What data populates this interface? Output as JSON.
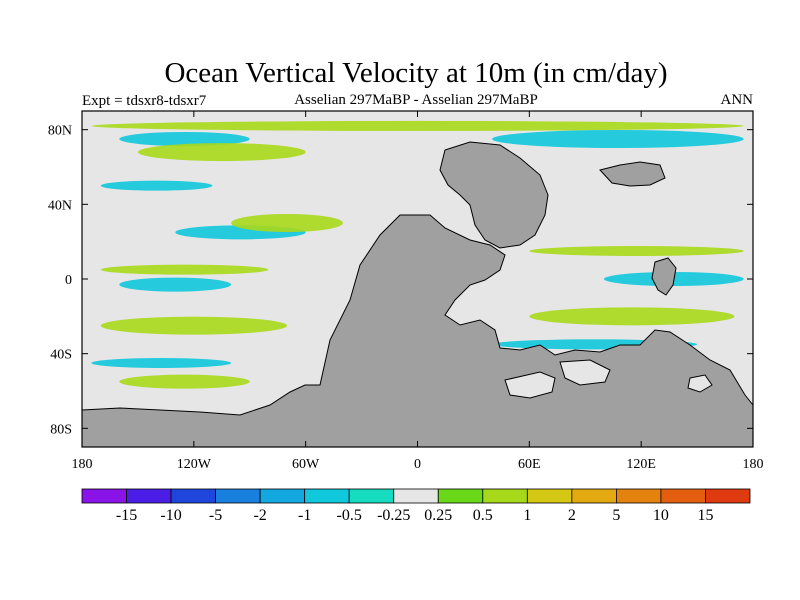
{
  "chart_data": {
    "type": "heatmap",
    "title": "Ocean Vertical Velocity at 10m (in cm/day)",
    "subtitle_left": "Expt = tdsxr8-tdsxr7",
    "subtitle_center": "Asselian 297MaBP - Asselian 297MaBP",
    "subtitle_right": "ANN",
    "xlabel": "",
    "ylabel": "",
    "x_range": [
      -180,
      180
    ],
    "y_range": [
      -90,
      90
    ],
    "x_ticks": [
      {
        "value": -180,
        "label": "180"
      },
      {
        "value": -120,
        "label": "120W"
      },
      {
        "value": -60,
        "label": "60W"
      },
      {
        "value": 0,
        "label": "0"
      },
      {
        "value": 60,
        "label": "60E"
      },
      {
        "value": 120,
        "label": "120E"
      },
      {
        "value": 180,
        "label": "180"
      }
    ],
    "y_ticks": [
      {
        "value": 80,
        "label": "80N"
      },
      {
        "value": 40,
        "label": "40N"
      },
      {
        "value": 0,
        "label": "0"
      },
      {
        "value": -40,
        "label": "40S"
      },
      {
        "value": -80,
        "label": "80S"
      }
    ],
    "colorbar": {
      "levels": [
        "-15",
        "-10",
        "-5",
        "-2",
        "-1",
        "-0.5",
        "-0.25",
        "0.25",
        "0.5",
        "1",
        "2",
        "5",
        "10",
        "15"
      ],
      "colors": [
        "#8a14e8",
        "#4a1ee6",
        "#1e46dc",
        "#1a80e0",
        "#14a8e0",
        "#10c8dc",
        "#18dcc0",
        "#e6e6e6",
        "#68d818",
        "#a8d81a",
        "#d4c814",
        "#e4a810",
        "#e48210",
        "#e45e10",
        "#e03a10"
      ]
    },
    "land_color": "#a0a0a0",
    "features": [
      {
        "name": "zonal-band-north",
        "lat": 82,
        "lon_start": -175,
        "lon_end": 175,
        "category": "0.5"
      },
      {
        "name": "band-north-upwelling",
        "lat": 75,
        "lon_start": -160,
        "lon_end": -90,
        "category": "-0.5"
      },
      {
        "name": "band-north-downwelling",
        "lat": 68,
        "lon_start": -150,
        "lon_end": -60,
        "category": "0.5"
      },
      {
        "name": "band-north-pacific",
        "lat": 50,
        "lon_start": -170,
        "lon_end": -110,
        "category": "-0.5"
      },
      {
        "name": "band-mid-north",
        "lat": 25,
        "lon_start": -130,
        "lon_end": -60,
        "category": "-0.5"
      },
      {
        "name": "band-mid-north-green",
        "lat": 30,
        "lon_start": -100,
        "lon_end": -40,
        "category": "0.5"
      },
      {
        "name": "band-equator-green",
        "lat": 5,
        "lon_start": -170,
        "lon_end": -80,
        "category": "0.5"
      },
      {
        "name": "band-equator-cyan",
        "lat": -3,
        "lon_start": -160,
        "lon_end": -100,
        "category": "-0.5"
      },
      {
        "name": "band-south-green",
        "lat": -25,
        "lon_start": -170,
        "lon_end": -70,
        "category": "0.5"
      },
      {
        "name": "band-south-cyan",
        "lat": -45,
        "lon_start": -175,
        "lon_end": -100,
        "category": "-0.5"
      },
      {
        "name": "band-south-green-2",
        "lat": -55,
        "lon_start": -160,
        "lon_end": -90,
        "category": "0.5"
      },
      {
        "name": "band-east-north",
        "lat": 75,
        "lon_start": 40,
        "lon_end": 175,
        "category": "-0.5"
      },
      {
        "name": "band-east-tropics",
        "lat": 15,
        "lon_start": 60,
        "lon_end": 175,
        "category": "0.5"
      },
      {
        "name": "band-east-equator",
        "lat": 0,
        "lon_start": 100,
        "lon_end": 175,
        "category": "-0.5"
      },
      {
        "name": "band-east-south",
        "lat": -20,
        "lon_start": 60,
        "lon_end": 170,
        "category": "0.5"
      },
      {
        "name": "band-east-south-cyan",
        "lat": -35,
        "lon_start": 40,
        "lon_end": 150,
        "category": "-0.5"
      }
    ]
  }
}
